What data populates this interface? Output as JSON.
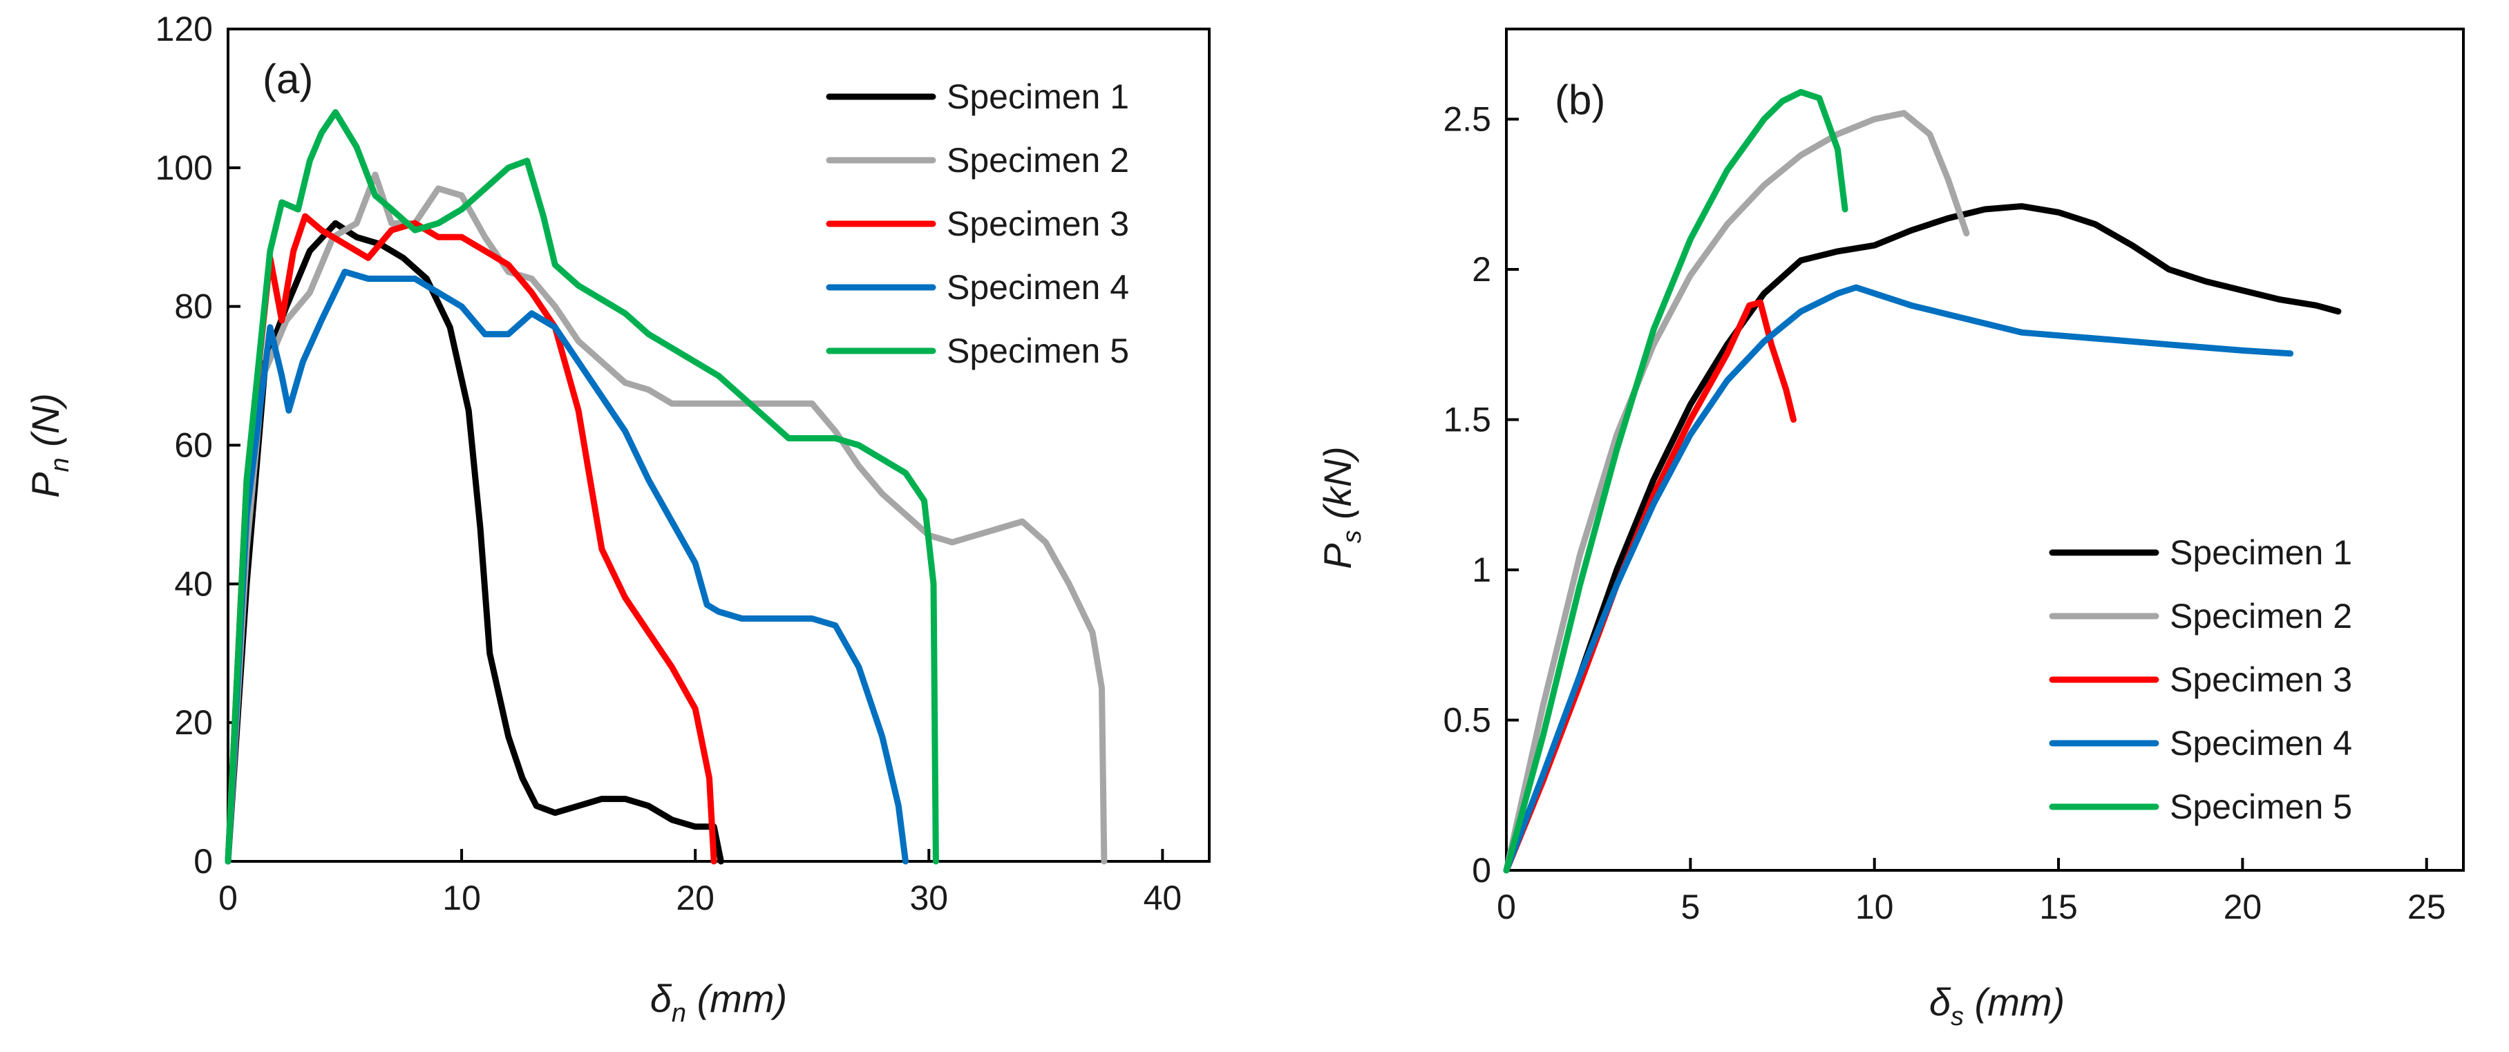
{
  "chart_data": [
    {
      "type": "line",
      "panel_label": "(a)",
      "xlabel_symbol": "δ",
      "xlabel_subscript": "n",
      "xlabel_unit": " (mm)",
      "ylabel_symbol": "P",
      "ylabel_subscript": "n",
      "ylabel_unit": " (N)",
      "xlim": [
        0,
        42
      ],
      "ylim": [
        0,
        120
      ],
      "xticks": [
        0,
        10,
        20,
        30,
        40
      ],
      "xtick_labels": [
        "0",
        "10",
        "20",
        "30",
        "40"
      ],
      "yticks": [
        0,
        20,
        40,
        60,
        80,
        100,
        120
      ],
      "ytick_labels": [
        "0",
        "20",
        "40",
        "60",
        "80",
        "100",
        "120"
      ],
      "grid": false,
      "legend_position": "top-right",
      "series": [
        {
          "name": "Specimen 1",
          "color": "#000000",
          "points": [
            [
              0,
              0
            ],
            [
              0.8,
              40
            ],
            [
              1.6,
              72
            ],
            [
              2.5,
              80
            ],
            [
              3.5,
              88
            ],
            [
              4.6,
              92
            ],
            [
              5.5,
              90
            ],
            [
              6.5,
              89
            ],
            [
              7.5,
              87
            ],
            [
              8.5,
              84
            ],
            [
              9.5,
              77
            ],
            [
              10.3,
              65
            ],
            [
              10.8,
              48
            ],
            [
              11.2,
              30
            ],
            [
              12,
              18
            ],
            [
              12.6,
              12
            ],
            [
              13.2,
              8
            ],
            [
              14,
              7
            ],
            [
              15,
              8
            ],
            [
              16,
              9
            ],
            [
              17,
              9
            ],
            [
              18,
              8
            ],
            [
              19,
              6
            ],
            [
              20,
              5
            ],
            [
              20.8,
              5
            ],
            [
              21.1,
              0
            ]
          ]
        },
        {
          "name": "Specimen 2",
          "color": "#a6a6a6",
          "points": [
            [
              0,
              0
            ],
            [
              0.8,
              45
            ],
            [
              1.5,
              70
            ],
            [
              2.5,
              78
            ],
            [
              3.5,
              82
            ],
            [
              4.5,
              90
            ],
            [
              5.5,
              92
            ],
            [
              6.3,
              99
            ],
            [
              7,
              92
            ],
            [
              8,
              92
            ],
            [
              9,
              97
            ],
            [
              10,
              96
            ],
            [
              11,
              90
            ],
            [
              12,
              85
            ],
            [
              13,
              84
            ],
            [
              14,
              80
            ],
            [
              15,
              75
            ],
            [
              16,
              72
            ],
            [
              17,
              69
            ],
            [
              18,
              68
            ],
            [
              19,
              66
            ],
            [
              20,
              66
            ],
            [
              22,
              66
            ],
            [
              24,
              66
            ],
            [
              25,
              66
            ],
            [
              26,
              62
            ],
            [
              27,
              57
            ],
            [
              28,
              53
            ],
            [
              29,
              50
            ],
            [
              30,
              47
            ],
            [
              31,
              46
            ],
            [
              32,
              47
            ],
            [
              33,
              48
            ],
            [
              34,
              49
            ],
            [
              35,
              46
            ],
            [
              36,
              40
            ],
            [
              37,
              33
            ],
            [
              37.4,
              25
            ],
            [
              37.5,
              0
            ]
          ]
        },
        {
          "name": "Specimen 3",
          "color": "#ff0000",
          "points": [
            [
              0,
              0
            ],
            [
              0.8,
              55
            ],
            [
              1.8,
              87
            ],
            [
              2.3,
              78
            ],
            [
              2.8,
              88
            ],
            [
              3.3,
              93
            ],
            [
              4,
              91
            ],
            [
              5,
              89
            ],
            [
              6,
              87
            ],
            [
              7,
              91
            ],
            [
              8,
              92
            ],
            [
              9,
              90
            ],
            [
              10,
              90
            ],
            [
              11,
              88
            ],
            [
              12,
              86
            ],
            [
              13,
              82
            ],
            [
              14,
              77
            ],
            [
              15,
              65
            ],
            [
              15.5,
              55
            ],
            [
              16,
              45
            ],
            [
              17,
              38
            ],
            [
              18,
              33
            ],
            [
              19,
              28
            ],
            [
              20,
              22
            ],
            [
              20.6,
              12
            ],
            [
              20.8,
              0
            ]
          ]
        },
        {
          "name": "Specimen 4",
          "color": "#0070c0",
          "points": [
            [
              0,
              0
            ],
            [
              0.8,
              50
            ],
            [
              1.8,
              77
            ],
            [
              2.3,
              70
            ],
            [
              2.6,
              65
            ],
            [
              3.2,
              72
            ],
            [
              4,
              78
            ],
            [
              5,
              85
            ],
            [
              6,
              84
            ],
            [
              7,
              84
            ],
            [
              8,
              84
            ],
            [
              9,
              82
            ],
            [
              10,
              80
            ],
            [
              11,
              76
            ],
            [
              12,
              76
            ],
            [
              13,
              79
            ],
            [
              14,
              77
            ],
            [
              15,
              72
            ],
            [
              16,
              67
            ],
            [
              17,
              62
            ],
            [
              18,
              55
            ],
            [
              19,
              49
            ],
            [
              20,
              43
            ],
            [
              20.5,
              37
            ],
            [
              21,
              36
            ],
            [
              22,
              35
            ],
            [
              23,
              35
            ],
            [
              24,
              35
            ],
            [
              25,
              35
            ],
            [
              26,
              34
            ],
            [
              27,
              28
            ],
            [
              28,
              18
            ],
            [
              28.7,
              8
            ],
            [
              29,
              0
            ]
          ]
        },
        {
          "name": "Specimen 5",
          "color": "#00b050",
          "points": [
            [
              0,
              0
            ],
            [
              0.8,
              55
            ],
            [
              1.8,
              88
            ],
            [
              2.3,
              95
            ],
            [
              3,
              94
            ],
            [
              3.5,
              101
            ],
            [
              4,
              105
            ],
            [
              4.6,
              108
            ],
            [
              5.5,
              103
            ],
            [
              6.3,
              96
            ],
            [
              7,
              94
            ],
            [
              8,
              91
            ],
            [
              9,
              92
            ],
            [
              10,
              94
            ],
            [
              11,
              97
            ],
            [
              12,
              100
            ],
            [
              12.8,
              101
            ],
            [
              13.5,
              93
            ],
            [
              14,
              86
            ],
            [
              15,
              83
            ],
            [
              16,
              81
            ],
            [
              17,
              79
            ],
            [
              18,
              76
            ],
            [
              19,
              74
            ],
            [
              20,
              72
            ],
            [
              21,
              70
            ],
            [
              22,
              67
            ],
            [
              23,
              64
            ],
            [
              24,
              61
            ],
            [
              25,
              61
            ],
            [
              26,
              61
            ],
            [
              27,
              60
            ],
            [
              28,
              58
            ],
            [
              29,
              56
            ],
            [
              29.8,
              52
            ],
            [
              30.2,
              40
            ],
            [
              30.3,
              0
            ]
          ]
        }
      ]
    },
    {
      "type": "line",
      "panel_label": "(b)",
      "xlabel_symbol": "δ",
      "xlabel_subscript": "s",
      "xlabel_unit": " (mm)",
      "ylabel_symbol": "P",
      "ylabel_subscript": "s",
      "ylabel_unit": " (kN)",
      "xlim": [
        0,
        26
      ],
      "ylim": [
        0,
        2.8
      ],
      "xticks": [
        0,
        5,
        10,
        15,
        20,
        25
      ],
      "xtick_labels": [
        "0",
        "5",
        "10",
        "15",
        "20",
        "25"
      ],
      "yticks": [
        0,
        0.5,
        1,
        1.5,
        2,
        2.5
      ],
      "ytick_labels": [
        "0",
        "0.5",
        "1",
        "1.5",
        "2",
        "2.5"
      ],
      "grid": false,
      "legend_position": "bottom-right",
      "series": [
        {
          "name": "Specimen 1",
          "color": "#000000",
          "points": [
            [
              0,
              0
            ],
            [
              1,
              0.3
            ],
            [
              2,
              0.65
            ],
            [
              3,
              1.0
            ],
            [
              4,
              1.3
            ],
            [
              5,
              1.55
            ],
            [
              6,
              1.75
            ],
            [
              7,
              1.92
            ],
            [
              8,
              2.03
            ],
            [
              9,
              2.06
            ],
            [
              10,
              2.08
            ],
            [
              11,
              2.13
            ],
            [
              12,
              2.17
            ],
            [
              13,
              2.2
            ],
            [
              14,
              2.21
            ],
            [
              15,
              2.19
            ],
            [
              16,
              2.15
            ],
            [
              17,
              2.08
            ],
            [
              18,
              2.0
            ],
            [
              19,
              1.96
            ],
            [
              20,
              1.93
            ],
            [
              21,
              1.9
            ],
            [
              22,
              1.88
            ],
            [
              22.6,
              1.86
            ]
          ]
        },
        {
          "name": "Specimen 2",
          "color": "#a6a6a6",
          "points": [
            [
              0,
              0
            ],
            [
              1,
              0.55
            ],
            [
              2,
              1.05
            ],
            [
              3,
              1.45
            ],
            [
              4,
              1.75
            ],
            [
              5,
              1.98
            ],
            [
              6,
              2.15
            ],
            [
              7,
              2.28
            ],
            [
              8,
              2.38
            ],
            [
              9,
              2.45
            ],
            [
              10,
              2.5
            ],
            [
              10.8,
              2.52
            ],
            [
              11.5,
              2.45
            ],
            [
              12,
              2.3
            ],
            [
              12.5,
              2.12
            ]
          ]
        },
        {
          "name": "Specimen 3",
          "color": "#ff0000",
          "points": [
            [
              0,
              0
            ],
            [
              1,
              0.3
            ],
            [
              2,
              0.62
            ],
            [
              3,
              0.95
            ],
            [
              4,
              1.25
            ],
            [
              5,
              1.5
            ],
            [
              6,
              1.72
            ],
            [
              6.6,
              1.88
            ],
            [
              6.9,
              1.89
            ],
            [
              7.2,
              1.75
            ],
            [
              7.6,
              1.6
            ],
            [
              7.8,
              1.5
            ]
          ]
        },
        {
          "name": "Specimen 4",
          "color": "#0070c0",
          "points": [
            [
              0,
              0
            ],
            [
              1,
              0.32
            ],
            [
              2,
              0.65
            ],
            [
              3,
              0.95
            ],
            [
              4,
              1.22
            ],
            [
              5,
              1.45
            ],
            [
              6,
              1.63
            ],
            [
              7,
              1.76
            ],
            [
              8,
              1.86
            ],
            [
              9,
              1.92
            ],
            [
              9.5,
              1.94
            ],
            [
              10,
              1.92
            ],
            [
              11,
              1.88
            ],
            [
              12,
              1.85
            ],
            [
              13,
              1.82
            ],
            [
              14,
              1.79
            ],
            [
              15,
              1.78
            ],
            [
              16,
              1.77
            ],
            [
              17,
              1.76
            ],
            [
              18,
              1.75
            ],
            [
              19,
              1.74
            ],
            [
              20,
              1.73
            ],
            [
              21.3,
              1.72
            ]
          ]
        },
        {
          "name": "Specimen 5",
          "color": "#00b050",
          "points": [
            [
              0,
              0
            ],
            [
              1,
              0.45
            ],
            [
              2,
              0.95
            ],
            [
              3,
              1.4
            ],
            [
              4,
              1.8
            ],
            [
              5,
              2.1
            ],
            [
              6,
              2.33
            ],
            [
              7,
              2.5
            ],
            [
              7.5,
              2.56
            ],
            [
              8,
              2.59
            ],
            [
              8.5,
              2.57
            ],
            [
              9,
              2.4
            ],
            [
              9.2,
              2.2
            ]
          ]
        }
      ]
    }
  ]
}
